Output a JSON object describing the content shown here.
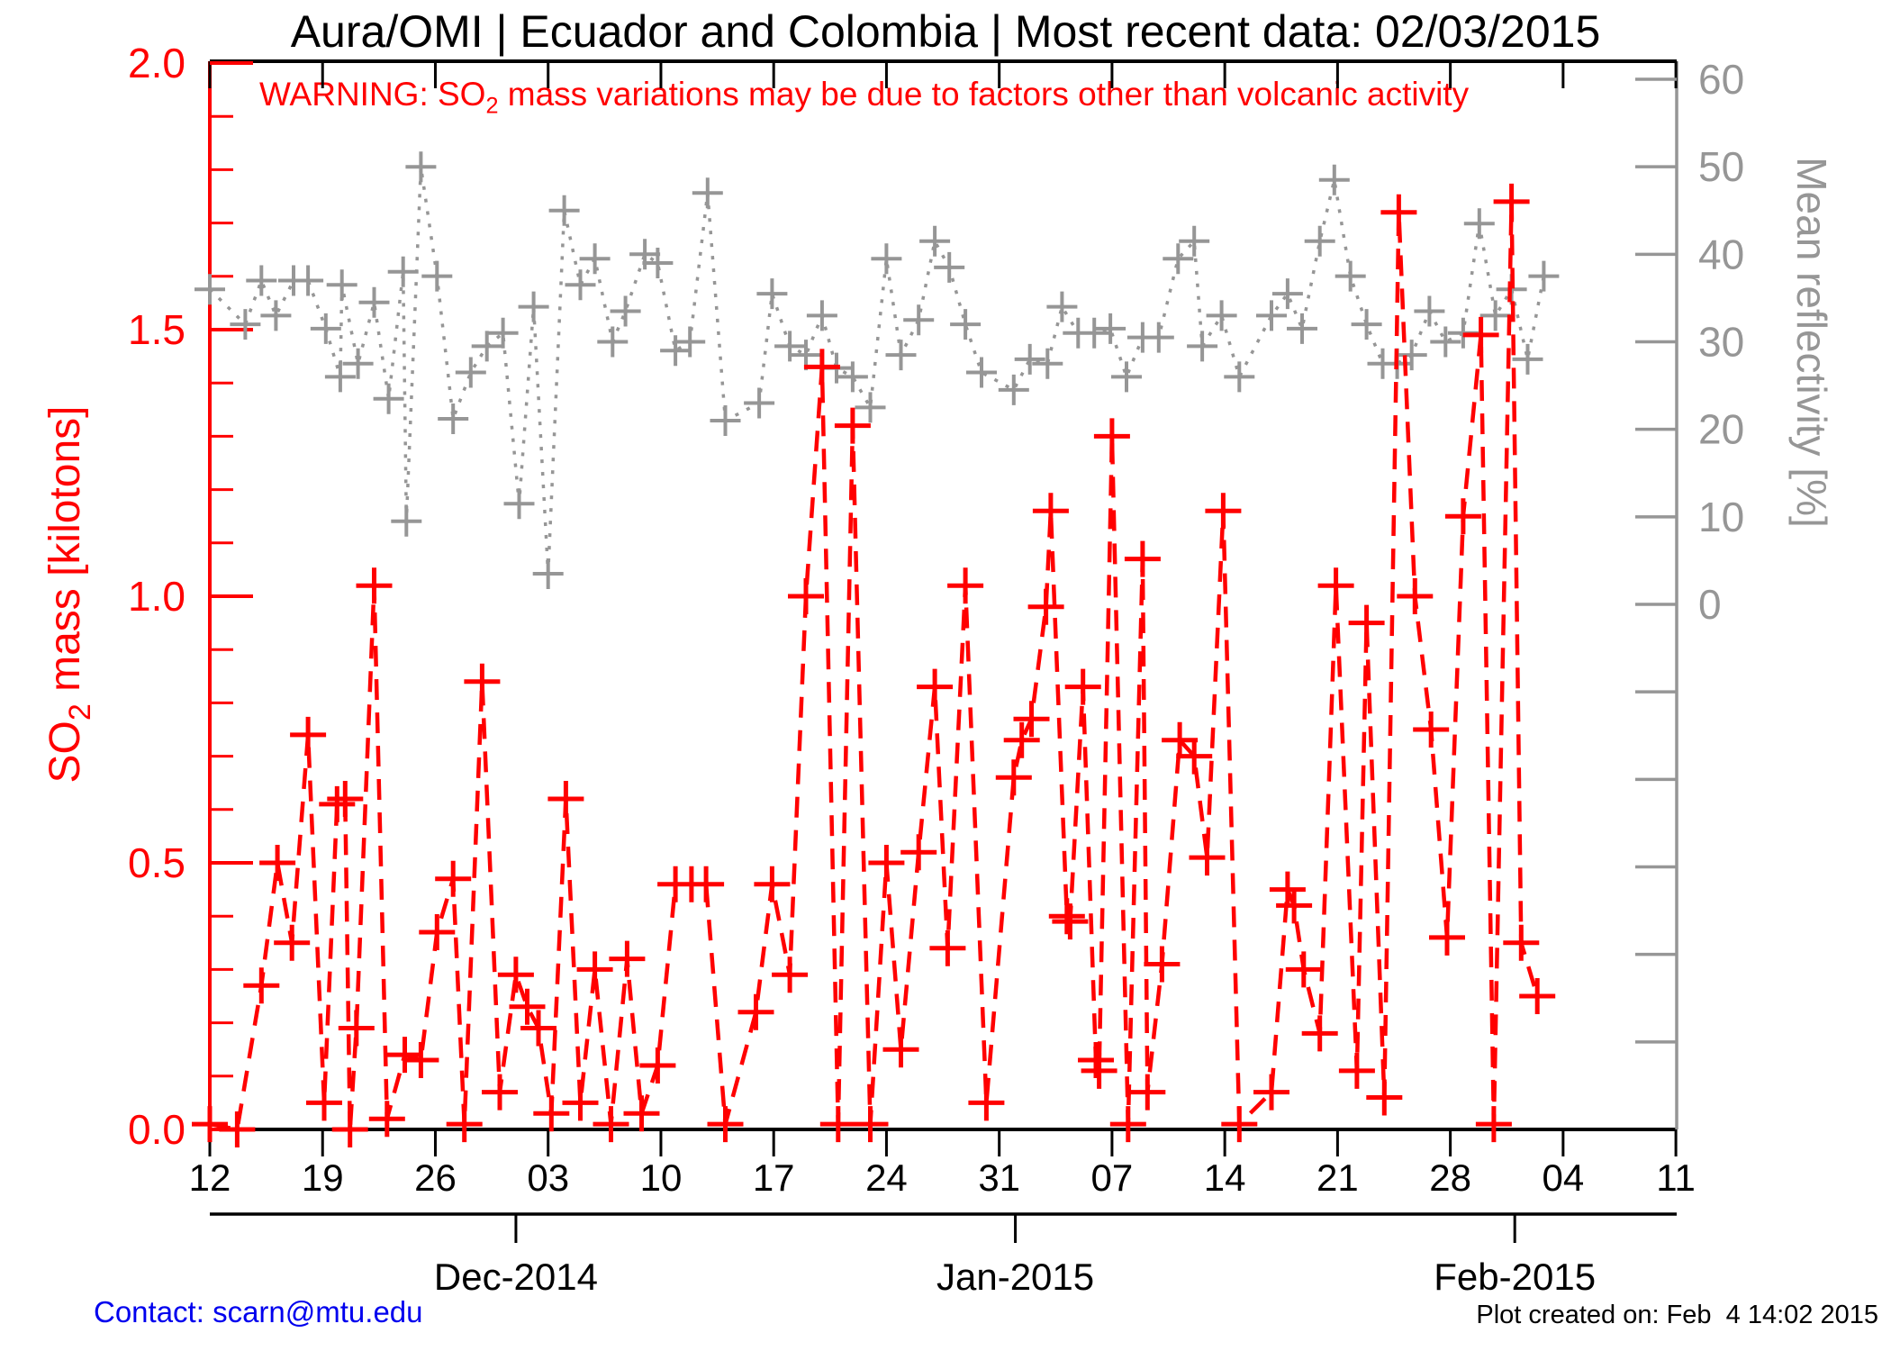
{
  "header": {
    "title": "Aura/OMI | Ecuador and Colombia | Most recent data: 02/03/2015"
  },
  "warning_text": "WARNING: SO2 mass variations may be due to factors other than volcanic activity",
  "footer": {
    "contact": "Contact: scarn@mtu.edu",
    "created": "Plot created on: Feb  4 14:02 2015"
  },
  "chart_data": {
    "type": "line",
    "title": "Aura/OMI | Ecuador and Colombia | Most recent data: 02/03/2015",
    "grid": "off",
    "legend": "none",
    "x_axis": {
      "description": "Daily dates from 12 Nov 2014 to 11 Feb 2015, weekly labeled ticks",
      "week_tick_labels": [
        "12",
        "19",
        "26",
        "03",
        "10",
        "17",
        "24",
        "31",
        "07",
        "14",
        "21",
        "28",
        "04",
        "11"
      ],
      "week_tick_days": [
        0,
        7,
        14,
        21,
        28,
        35,
        42,
        49,
        56,
        63,
        70,
        77,
        84,
        91
      ],
      "month_ticks": [
        {
          "label": "Dec-2014",
          "day": 19
        },
        {
          "label": "Jan-2015",
          "day": 50
        },
        {
          "label": "Feb-2015",
          "day": 81
        }
      ],
      "range_days": [
        0,
        91.05
      ]
    },
    "left_axis": {
      "label": "SO2 mass [kilotons]",
      "color": "#ff0000",
      "range": [
        0.0,
        2.0
      ],
      "major_ticks": [
        0.0,
        0.5,
        1.0,
        1.5,
        2.0
      ],
      "tick_labels": [
        "0.0",
        "0.5",
        "1.0",
        "1.5",
        "2.0"
      ],
      "minor_tick_step": 0.1
    },
    "right_axis": {
      "label": "Mean reflectivity [%]",
      "color": "#969696",
      "range": [
        -60,
        60
      ],
      "tick_step": 10,
      "labeled_ticks": [
        0,
        10,
        20,
        30,
        40,
        50,
        60
      ],
      "tick_labels": [
        "0",
        "10",
        "20",
        "30",
        "40",
        "50",
        "60"
      ]
    },
    "series": [
      {
        "name": "SO2 mass [kilotons]",
        "color": "#ff0000",
        "line_style": "dashed",
        "marker": "plus",
        "y_axis": "left",
        "points": [
          [
            0,
            0.01
          ],
          [
            1.7,
            0
          ],
          [
            3.2,
            0.27
          ],
          [
            4.2,
            0.5
          ],
          [
            5.1,
            0.35
          ],
          [
            6.1,
            0.74
          ],
          [
            7.1,
            0.05
          ],
          [
            7.9,
            0.61
          ],
          [
            8.4,
            0.62
          ],
          [
            8.7,
            0
          ],
          [
            9.1,
            0.19
          ],
          [
            10.2,
            1.02
          ],
          [
            11,
            0.02
          ],
          [
            12.1,
            0.14
          ],
          [
            13.1,
            0.13
          ],
          [
            14.1,
            0.37
          ],
          [
            15.1,
            0.47
          ],
          [
            15.8,
            0.01
          ],
          [
            16.9,
            0.84
          ],
          [
            18,
            0.07
          ],
          [
            19,
            0.29
          ],
          [
            19.7,
            0.23
          ],
          [
            20.4,
            0.19
          ],
          [
            21.2,
            0.03
          ],
          [
            22.1,
            0.62
          ],
          [
            23,
            0.05
          ],
          [
            23.9,
            0.3
          ],
          [
            24.9,
            0.01
          ],
          [
            25.9,
            0.32
          ],
          [
            26.8,
            0.03
          ],
          [
            27.8,
            0.12
          ],
          [
            28.9,
            0.46
          ],
          [
            29.9,
            0.46
          ],
          [
            30.8,
            0.46
          ],
          [
            32,
            0.01
          ],
          [
            33.9,
            0.22
          ],
          [
            34.9,
            0.46
          ],
          [
            36,
            0.29
          ],
          [
            37,
            1.0
          ],
          [
            38,
            1.43
          ],
          [
            39,
            0.01
          ],
          [
            39.9,
            1.32
          ],
          [
            41,
            0.01
          ],
          [
            42,
            0.5
          ],
          [
            42.9,
            0.15
          ],
          [
            44,
            0.52
          ],
          [
            45,
            0.83
          ],
          [
            45.8,
            0.34
          ],
          [
            46.9,
            1.02
          ],
          [
            48.2,
            0.05
          ],
          [
            49.9,
            0.66
          ],
          [
            50.4,
            0.73
          ],
          [
            51,
            0.77
          ],
          [
            51.9,
            0.98
          ],
          [
            52.2,
            1.16
          ],
          [
            53.2,
            0.4
          ],
          [
            53.4,
            0.39
          ],
          [
            54.2,
            0.83
          ],
          [
            55,
            0.13
          ],
          [
            55.2,
            0.11
          ],
          [
            56,
            1.3
          ],
          [
            57,
            0.01
          ],
          [
            57.9,
            1.07
          ],
          [
            58.2,
            0.07
          ],
          [
            59.1,
            0.31
          ],
          [
            60.2,
            0.73
          ],
          [
            61.1,
            0.7
          ],
          [
            61.9,
            0.51
          ],
          [
            62.9,
            1.16
          ],
          [
            63.9,
            0.01
          ],
          [
            65.9,
            0.07
          ],
          [
            66.9,
            0.45
          ],
          [
            67.3,
            0.42
          ],
          [
            67.9,
            0.3
          ],
          [
            68.9,
            0.18
          ],
          [
            69.9,
            1.02
          ],
          [
            71.2,
            0.11
          ],
          [
            71.8,
            0.95
          ],
          [
            72.9,
            0.06
          ],
          [
            73.8,
            1.72
          ],
          [
            74.8,
            1.0
          ],
          [
            75.8,
            0.75
          ],
          [
            76.8,
            0.36
          ],
          [
            77.8,
            1.15
          ],
          [
            78.9,
            1.49
          ],
          [
            79.7,
            0.01
          ],
          [
            80.8,
            1.74
          ],
          [
            81.4,
            0.35
          ],
          [
            82.4,
            0.25
          ]
        ]
      },
      {
        "name": "Mean reflectivity [%]",
        "color": "#969696",
        "line_style": "dotted",
        "marker": "plus",
        "y_axis": "right",
        "points": [
          [
            0,
            36
          ],
          [
            2.2,
            32
          ],
          [
            3.2,
            37
          ],
          [
            4.1,
            33
          ],
          [
            5.2,
            37
          ],
          [
            6.1,
            37
          ],
          [
            7.2,
            31.5
          ],
          [
            8.1,
            26
          ],
          [
            8.2,
            36.5
          ],
          [
            9.2,
            27.5
          ],
          [
            10.2,
            34.5
          ],
          [
            11.1,
            23.5
          ],
          [
            12,
            38
          ],
          [
            12.2,
            9.5
          ],
          [
            13.1,
            50
          ],
          [
            14.1,
            37.5
          ],
          [
            15.1,
            21.2
          ],
          [
            16.2,
            26.5
          ],
          [
            17.2,
            29.5
          ],
          [
            18.2,
            31
          ],
          [
            19.2,
            11.5
          ],
          [
            20.1,
            34
          ],
          [
            21,
            3.5
          ],
          [
            22,
            45
          ],
          [
            23,
            36.5
          ],
          [
            23.9,
            39.5
          ],
          [
            25,
            30
          ],
          [
            25.8,
            33.5
          ],
          [
            27,
            40
          ],
          [
            27.8,
            39
          ],
          [
            28.9,
            29
          ],
          [
            29.8,
            30
          ],
          [
            30.9,
            47
          ],
          [
            32,
            21
          ],
          [
            34.1,
            23
          ],
          [
            34.9,
            35.5
          ],
          [
            36,
            29.5
          ],
          [
            37,
            28.5
          ],
          [
            38,
            33
          ],
          [
            38.9,
            27
          ],
          [
            39.9,
            26
          ],
          [
            41,
            22.5
          ],
          [
            42,
            39.5
          ],
          [
            42.9,
            28.5
          ],
          [
            44,
            32.5
          ],
          [
            45,
            41.5
          ],
          [
            45.9,
            38.5
          ],
          [
            46.9,
            32
          ],
          [
            47.9,
            26.5
          ],
          [
            49.9,
            24.5
          ],
          [
            50.9,
            28
          ],
          [
            52,
            27.5
          ],
          [
            52.9,
            34
          ],
          [
            53.9,
            31
          ],
          [
            54.9,
            31
          ],
          [
            55.9,
            31.5
          ],
          [
            56.9,
            26
          ],
          [
            57.9,
            30.5
          ],
          [
            58.9,
            30.5
          ],
          [
            60.1,
            39.5
          ],
          [
            61.1,
            41.5
          ],
          [
            61.6,
            29.5
          ],
          [
            62.8,
            33
          ],
          [
            63.9,
            26
          ],
          [
            65.9,
            33
          ],
          [
            66.9,
            35.5
          ],
          [
            67.8,
            31.5
          ],
          [
            68.9,
            41.5
          ],
          [
            69.8,
            48.5
          ],
          [
            70.8,
            37.5
          ],
          [
            71.8,
            32
          ],
          [
            72.8,
            27.5
          ],
          [
            73.7,
            27.5
          ],
          [
            74.6,
            28.5
          ],
          [
            75.7,
            33.5
          ],
          [
            76.7,
            30
          ],
          [
            77.8,
            31
          ],
          [
            78.8,
            43.5
          ],
          [
            79.8,
            33
          ],
          [
            80.8,
            36
          ],
          [
            81.8,
            28
          ],
          [
            82.8,
            37.5
          ]
        ]
      }
    ]
  }
}
